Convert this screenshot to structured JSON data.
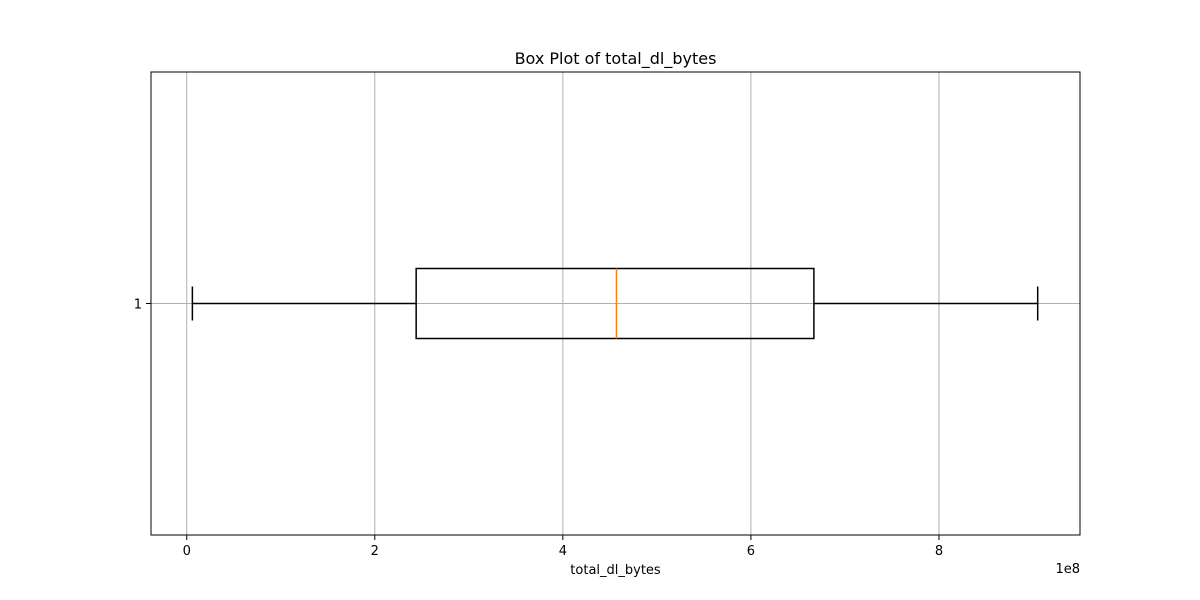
{
  "chart_data": {
    "type": "box",
    "orientation": "horizontal",
    "title": "Box Plot of total_dl_bytes",
    "xlabel": "total_dl_bytes",
    "ylabel": "",
    "x_offset_label": "1e8",
    "xlim": [
      -0.38,
      9.5
    ],
    "ylim": [
      0.5,
      1.5
    ],
    "x_ticks": [
      0,
      2,
      4,
      6,
      8
    ],
    "x_tick_labels": [
      "0",
      "2",
      "4",
      "6",
      "8"
    ],
    "y_ticks": [
      1
    ],
    "y_tick_labels": [
      "1"
    ],
    "grid": true,
    "series": [
      {
        "position": 1,
        "whisker_low": 0.06,
        "q1": 2.44,
        "median": 4.57,
        "q3": 6.67,
        "whisker_high": 9.05
      }
    ],
    "colors": {
      "box": "#000000",
      "median": "#ff7f0e",
      "grid": "#b0b0b0"
    }
  }
}
